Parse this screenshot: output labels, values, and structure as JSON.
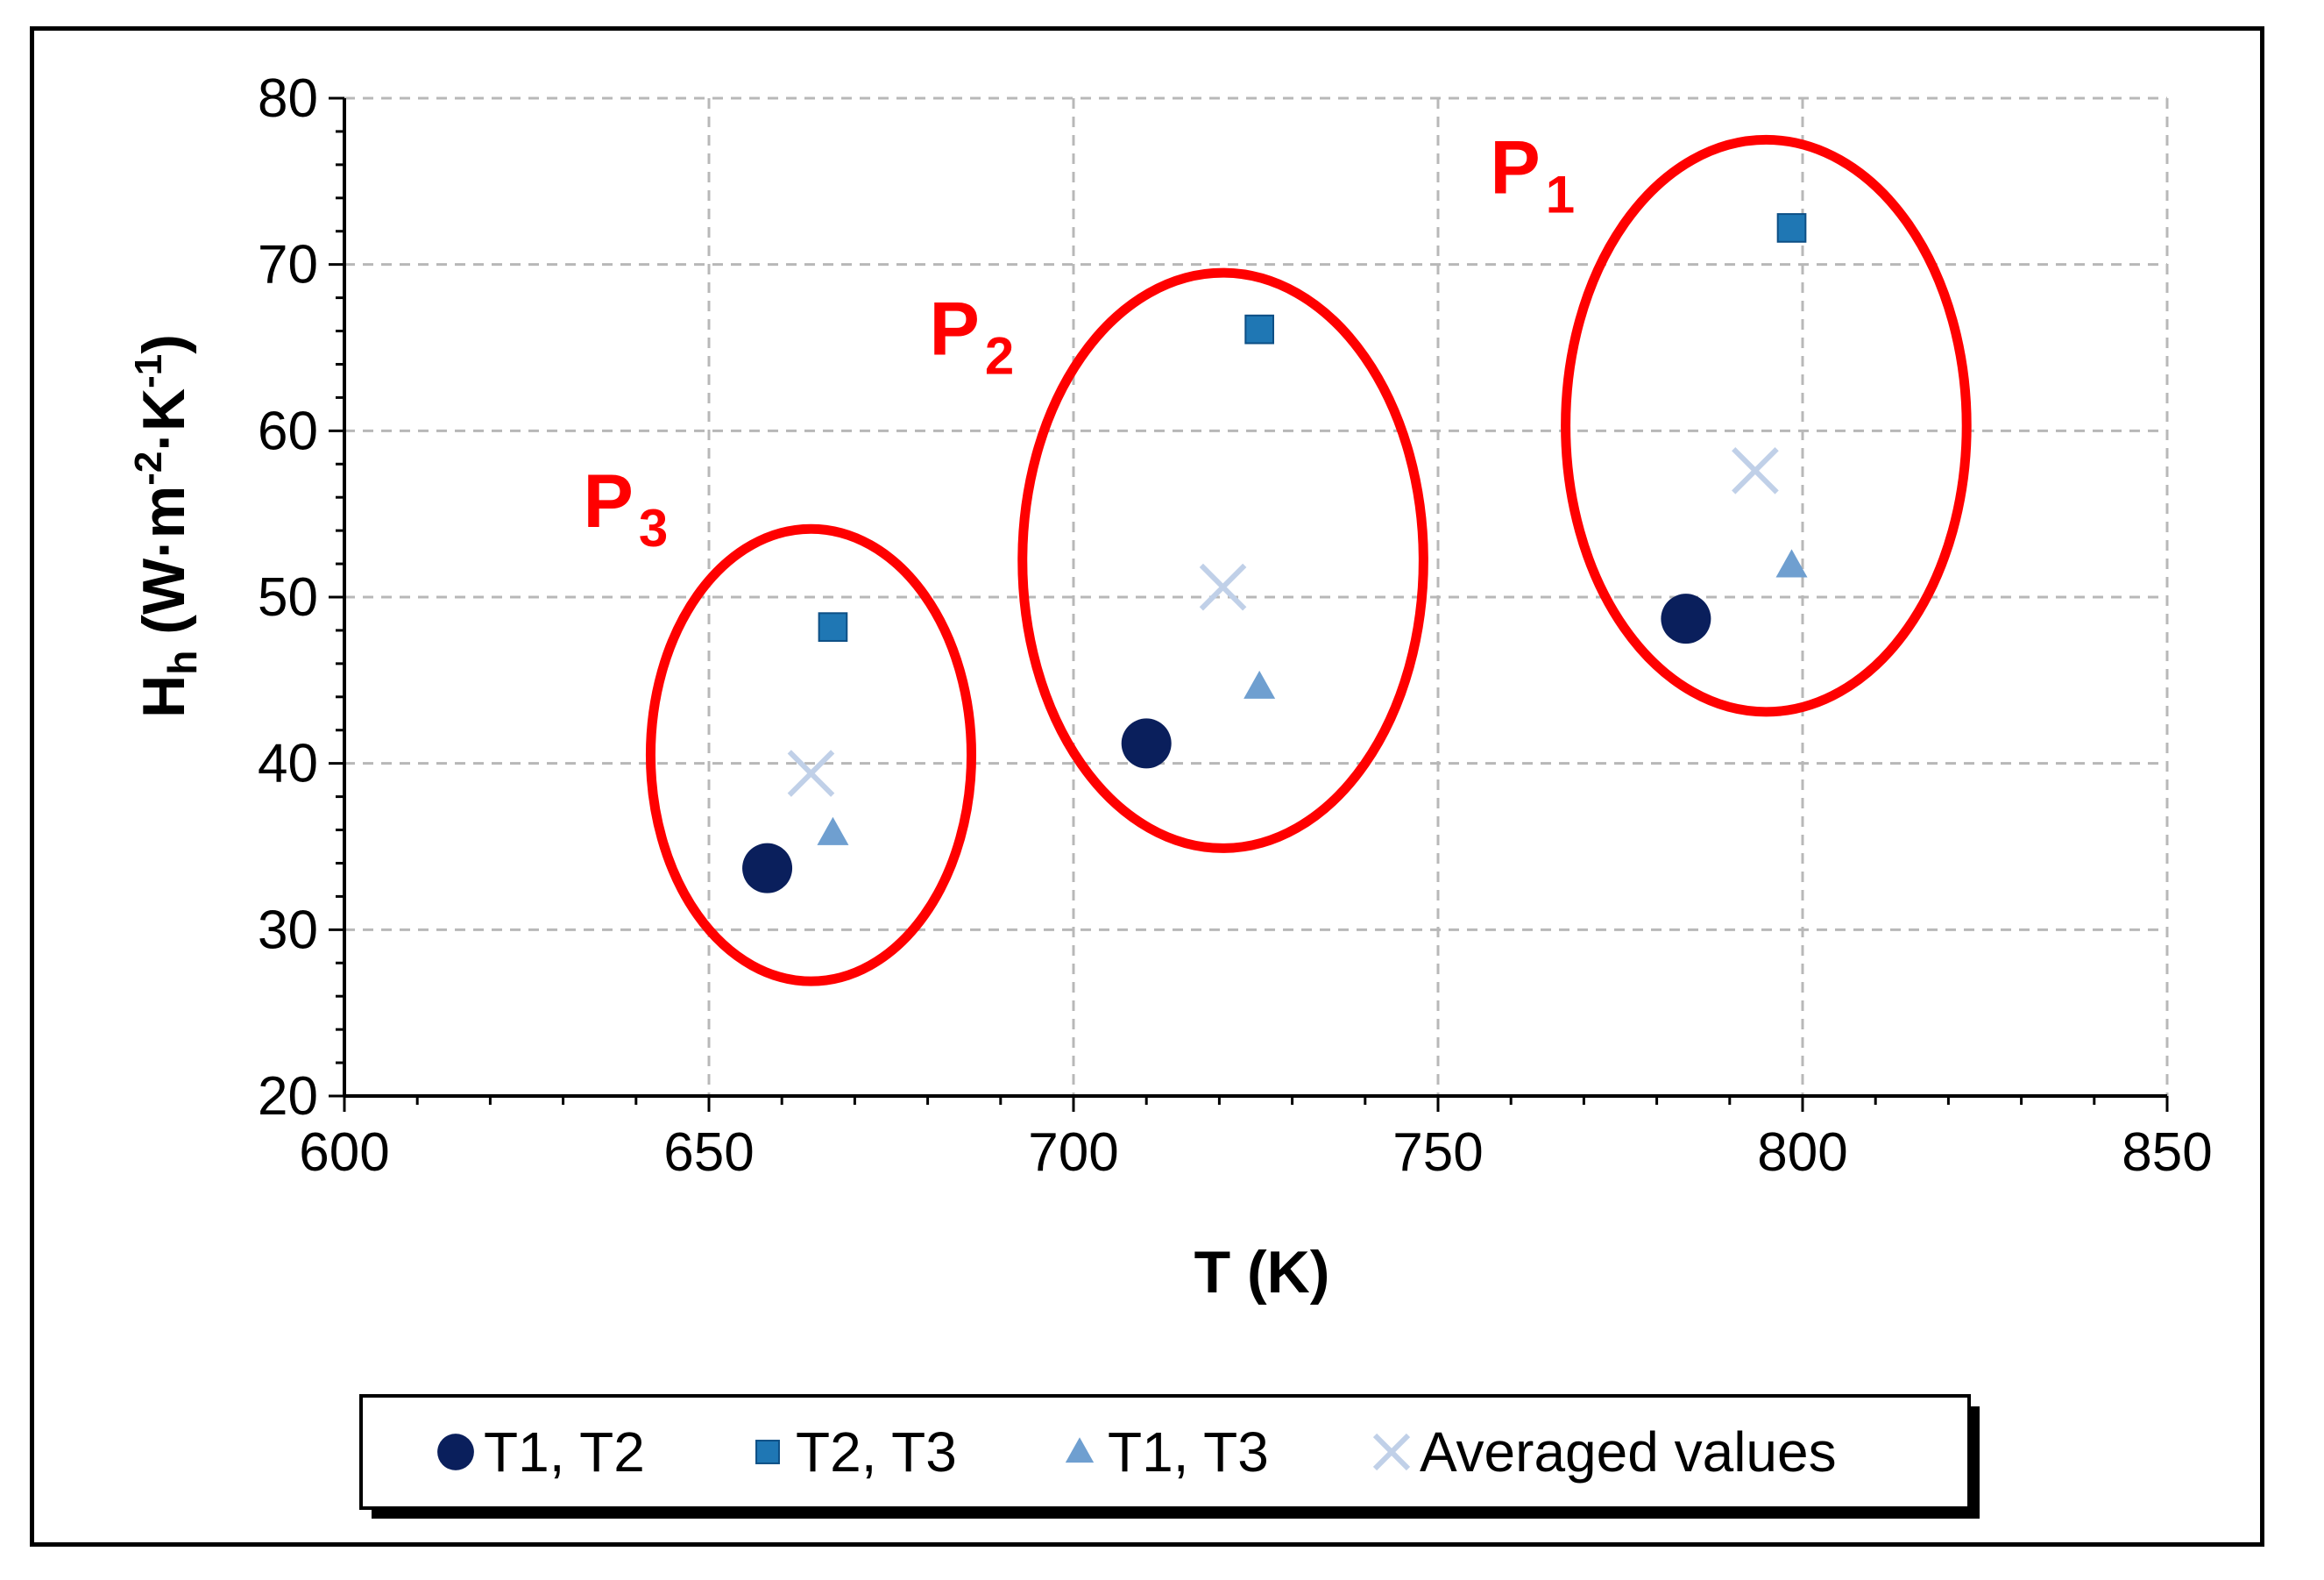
{
  "chart_data": {
    "type": "scatter",
    "title": "",
    "xlabel": "T (K)",
    "ylabel_main": "H",
    "ylabel_sub": "h",
    "ylabel_rest": "(W·m",
    "ylabel_exp1": "-2",
    "ylabel_mid": "·K",
    "ylabel_exp2": "-1",
    "ylabel_end": ")",
    "xlim": [
      600,
      850
    ],
    "ylim": [
      20,
      80
    ],
    "xticks": [
      600,
      650,
      700,
      750,
      800,
      850
    ],
    "yticks": [
      20,
      30,
      40,
      50,
      60,
      70,
      80
    ],
    "grid": true,
    "legend_position": "bottom",
    "series": [
      {
        "name": "T1, T2",
        "marker": "circle",
        "color": "#0a1f5c",
        "x": [
          658,
          710,
          784
        ],
        "y": [
          33.7,
          41.2,
          48.7
        ]
      },
      {
        "name": "T2, T3",
        "marker": "square",
        "color": "#1f77b4",
        "x": [
          667,
          725.5,
          798.5
        ],
        "y": [
          48.2,
          66.1,
          72.2
        ]
      },
      {
        "name": "T1, T3",
        "marker": "triangle",
        "color": "#6f9fd0",
        "x": [
          667,
          725.5,
          798.5
        ],
        "y": [
          35.8,
          44.6,
          51.9
        ]
      },
      {
        "name": "Averaged values",
        "marker": "x",
        "color": "#c0d0e8",
        "x": [
          664,
          720.5,
          793.5
        ],
        "y": [
          39.4,
          50.6,
          57.6
        ]
      }
    ],
    "annotations": [
      {
        "label": "P",
        "sub": "1",
        "center_x": 795,
        "center_y": 60.3,
        "rx_data": 27.5,
        "ry_data": 17.2
      },
      {
        "label": "P",
        "sub": "2",
        "center_x": 720.5,
        "center_y": 52.2,
        "rx_data": 27.5,
        "ry_data": 17.3
      },
      {
        "label": "P",
        "sub": "3",
        "center_x": 664,
        "center_y": 40.5,
        "rx_data": 22,
        "ry_data": 13.6
      }
    ],
    "annotation_color": "#ff0000"
  }
}
